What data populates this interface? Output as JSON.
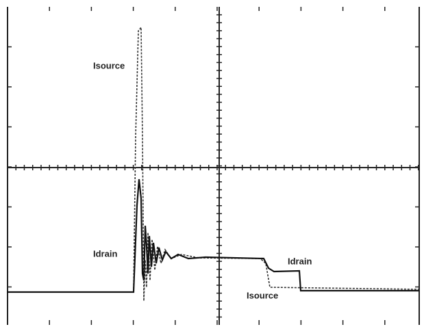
{
  "labels": [
    "Isource",
    "Idrain",
    "Idrain",
    "Isource"
  ]
}
